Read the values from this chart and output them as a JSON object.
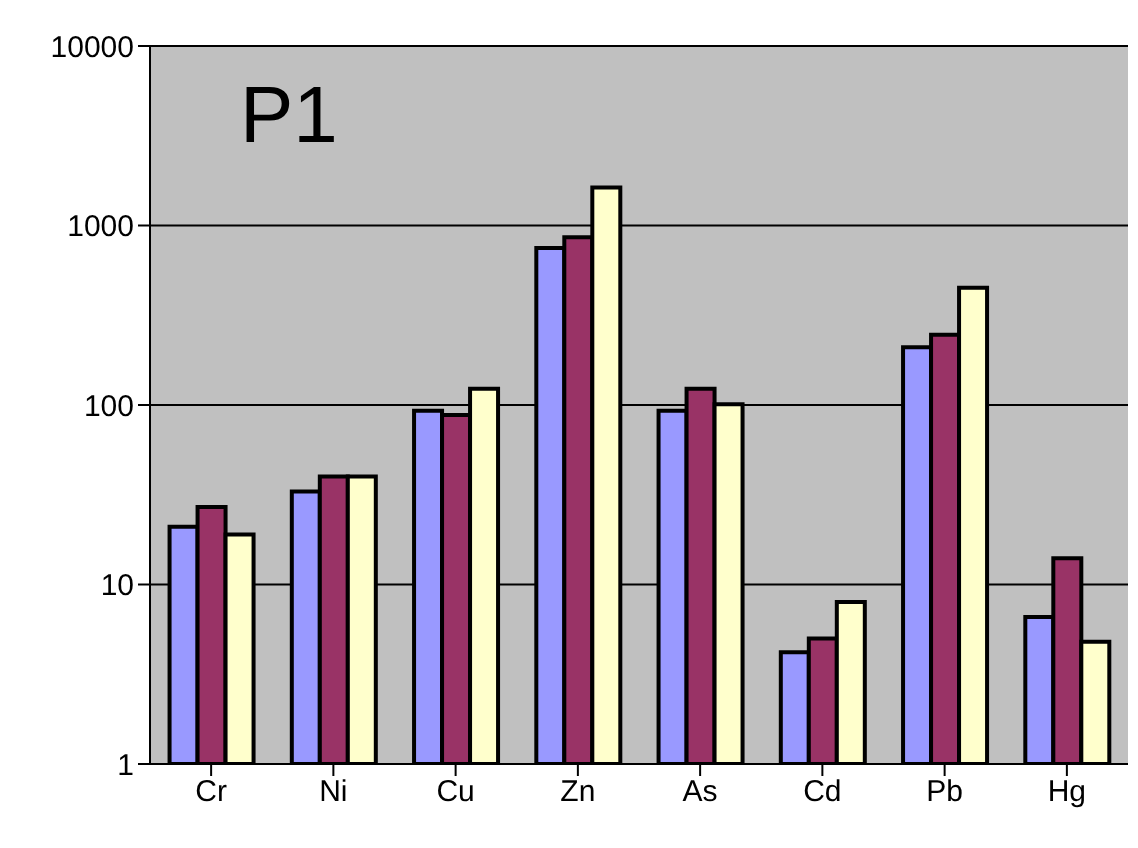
{
  "chart_data": {
    "type": "bar",
    "title": "P1",
    "categories": [
      "Cr",
      "Ni",
      "Cu",
      "Zn",
      "As",
      "Cd",
      "Pb",
      "Hg"
    ],
    "series": [
      {
        "color": "#9999ff",
        "values": [
          21,
          33,
          93,
          750,
          93,
          4.2,
          210,
          6.6
        ]
      },
      {
        "color": "#993366",
        "values": [
          27,
          40,
          88,
          860,
          123,
          5,
          246,
          14
        ]
      },
      {
        "color": "#ffffcc",
        "values": [
          19,
          40,
          123,
          1630,
          101,
          8,
          450,
          4.8
        ]
      }
    ],
    "log": true,
    "ylim": [
      1,
      10000
    ],
    "yticks": [
      1,
      10,
      100,
      1000,
      10000
    ],
    "grid": "y",
    "legend": false
  }
}
